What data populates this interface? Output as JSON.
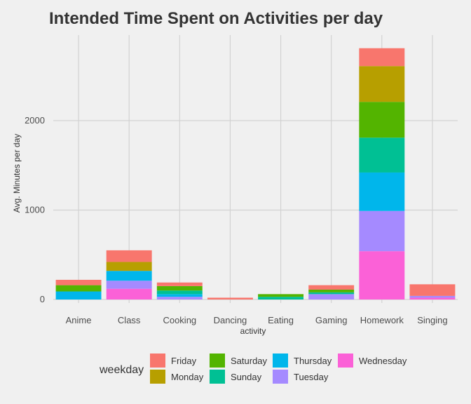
{
  "chart_data": {
    "type": "bar",
    "stacked": true,
    "title": "Intended Time Spent on Activities per day",
    "xlabel": "activity",
    "ylabel": "Avg. Minutes per day",
    "ylim": [
      -30,
      2900
    ],
    "yticks": [
      0,
      1000,
      2000
    ],
    "grid": true,
    "legend_position": "bottom",
    "legend_title": "weekday",
    "categories": [
      "Anime",
      "Class",
      "Cooking",
      "Dancing",
      "Eating",
      "Gaming",
      "Homework",
      "Singing"
    ],
    "series": [
      {
        "name": "Friday",
        "color": "#F8766D",
        "values": [
          60,
          130,
          40,
          20,
          0,
          50,
          200,
          130
        ]
      },
      {
        "name": "Monday",
        "color": "#B79F00",
        "values": [
          0,
          100,
          0,
          0,
          0,
          0,
          400,
          0
        ]
      },
      {
        "name": "Saturday",
        "color": "#53B400",
        "values": [
          70,
          0,
          50,
          0,
          30,
          30,
          400,
          0
        ]
      },
      {
        "name": "Sunday",
        "color": "#00C094",
        "values": [
          0,
          0,
          40,
          0,
          30,
          20,
          390,
          0
        ]
      },
      {
        "name": "Thursday",
        "color": "#00B6EB",
        "values": [
          90,
          110,
          30,
          0,
          0,
          0,
          430,
          0
        ]
      },
      {
        "name": "Tuesday",
        "color": "#A58AFF",
        "values": [
          0,
          90,
          30,
          0,
          0,
          60,
          450,
          20
        ]
      },
      {
        "name": "Wednesday",
        "color": "#FB61D7",
        "values": [
          0,
          120,
          0,
          0,
          0,
          0,
          540,
          20
        ]
      }
    ]
  }
}
